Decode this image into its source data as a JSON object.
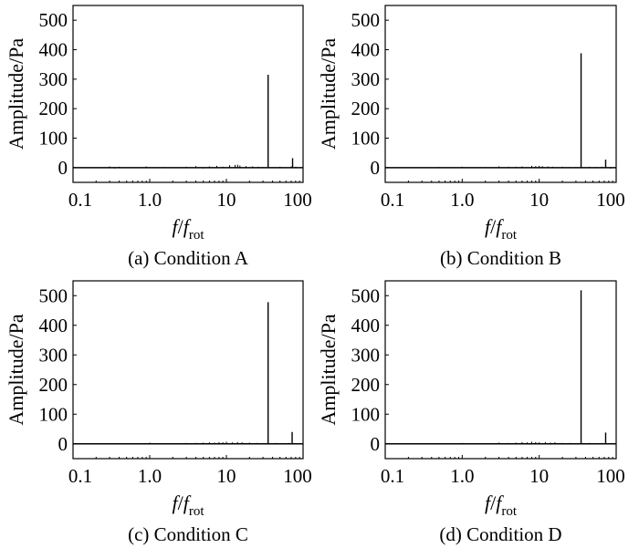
{
  "chart_data": [
    {
      "type": "line",
      "caption": "(a) Condition A",
      "xlabel_main": "f",
      "xlabel_den": "f",
      "xlabel_sub": "rot",
      "ylabel": "Amplitude/Pa",
      "xscale": "log",
      "xlim": [
        0.1,
        100
      ],
      "ylim": [
        -50,
        550
      ],
      "xticks": [
        0.1,
        1.0,
        10,
        100
      ],
      "xtick_labels": [
        "0.1",
        "1.0",
        "10",
        "100"
      ],
      "yticks": [
        0,
        100,
        200,
        300,
        400,
        500
      ],
      "ytick_labels": [
        "0",
        "100",
        "200",
        "300",
        "400",
        "500"
      ],
      "grid": false,
      "series": [
        {
          "x": [
            0.3,
            0.35,
            0.4,
            0.6,
            0.9,
            1.5,
            3,
            4,
            5,
            6,
            7.5,
            9,
            11,
            13,
            14,
            15,
            18,
            22,
            26,
            30,
            35,
            50,
            60,
            70,
            73,
            80,
            90
          ],
          "y": [
            4,
            -3,
            3,
            -2,
            4,
            2,
            3,
            5,
            -3,
            4,
            6,
            3,
            8,
            9,
            10,
            7,
            5,
            4,
            3,
            2,
            315,
            3,
            -2,
            4,
            32,
            3,
            -2
          ]
        }
      ]
    },
    {
      "type": "line",
      "caption": "(b) Condition B",
      "xlabel_main": "f",
      "xlabel_den": "f",
      "xlabel_sub": "rot",
      "ylabel": "Amplitude/Pa",
      "xscale": "log",
      "xlim": [
        0.1,
        100
      ],
      "ylim": [
        -50,
        550
      ],
      "xticks": [
        0.1,
        1.0,
        10,
        100
      ],
      "xtick_labels": [
        "0.1",
        "1.0",
        "10",
        "100"
      ],
      "yticks": [
        0,
        100,
        200,
        300,
        400,
        500
      ],
      "ytick_labels": [
        "0",
        "100",
        "200",
        "300",
        "400",
        "500"
      ],
      "grid": false,
      "series": [
        {
          "x": [
            0.5,
            1.0,
            2,
            3,
            4,
            5,
            6,
            8,
            9,
            10,
            11,
            13,
            15,
            20,
            25,
            30,
            35,
            45,
            55,
            65,
            73,
            85
          ],
          "y": [
            2,
            3,
            2,
            4,
            3,
            3,
            4,
            6,
            5,
            6,
            5,
            4,
            3,
            3,
            2,
            2,
            388,
            3,
            2,
            3,
            27,
            -3
          ]
        }
      ]
    },
    {
      "type": "line",
      "caption": "(c) Condition C",
      "xlabel_main": "f",
      "xlabel_den": "f",
      "xlabel_sub": "rot",
      "ylabel": "Amplitude/Pa",
      "xscale": "log",
      "xlim": [
        0.1,
        100
      ],
      "ylim": [
        -50,
        550
      ],
      "xticks": [
        0.1,
        1.0,
        10,
        100
      ],
      "xtick_labels": [
        "0.1",
        "1.0",
        "10",
        "100"
      ],
      "yticks": [
        0,
        100,
        200,
        300,
        400,
        500
      ],
      "ytick_labels": [
        "0",
        "100",
        "200",
        "300",
        "400",
        "500"
      ],
      "grid": false,
      "series": [
        {
          "x": [
            0.5,
            1.0,
            2,
            3,
            4,
            5,
            6,
            7,
            8,
            9,
            10,
            12,
            14,
            16,
            20,
            25,
            30,
            35,
            45,
            55,
            65,
            72,
            85
          ],
          "y": [
            2,
            4,
            2,
            3,
            3,
            4,
            5,
            4,
            6,
            5,
            7,
            5,
            6,
            5,
            4,
            3,
            2,
            478,
            3,
            2,
            3,
            40,
            2
          ]
        }
      ]
    },
    {
      "type": "line",
      "caption": "(d) Condition D",
      "xlabel_main": "f",
      "xlabel_den": "f",
      "xlabel_sub": "rot",
      "ylabel": "Amplitude/Pa",
      "xscale": "log",
      "xlim": [
        0.1,
        100
      ],
      "ylim": [
        -50,
        550
      ],
      "xticks": [
        0.1,
        1.0,
        10,
        100
      ],
      "xtick_labels": [
        "0.1",
        "1.0",
        "10",
        "100"
      ],
      "yticks": [
        0,
        100,
        200,
        300,
        400,
        500
      ],
      "ytick_labels": [
        "0",
        "100",
        "200",
        "300",
        "400",
        "500"
      ],
      "grid": false,
      "series": [
        {
          "x": [
            0.5,
            1.0,
            2,
            3,
            4,
            5,
            6,
            7,
            8,
            9,
            10,
            12,
            14,
            16,
            20,
            25,
            30,
            35,
            45,
            55,
            65,
            73,
            85
          ],
          "y": [
            2,
            3,
            2,
            4,
            3,
            4,
            6,
            5,
            7,
            6,
            5,
            6,
            4,
            5,
            3,
            3,
            2,
            518,
            3,
            2,
            3,
            38,
            2
          ]
        }
      ]
    }
  ]
}
